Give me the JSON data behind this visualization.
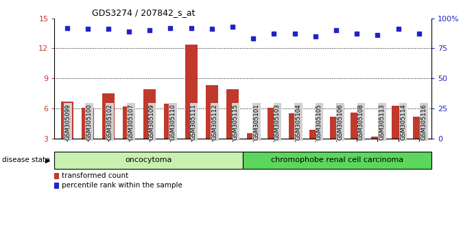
{
  "title": "GDS3274 / 207842_s_at",
  "samples": [
    "GSM305099",
    "GSM305100",
    "GSM305102",
    "GSM305107",
    "GSM305109",
    "GSM305110",
    "GSM305111",
    "GSM305112",
    "GSM305115",
    "GSM305101",
    "GSM305103",
    "GSM305104",
    "GSM305105",
    "GSM305106",
    "GSM305108",
    "GSM305113",
    "GSM305114",
    "GSM305116"
  ],
  "transformed_count": [
    6.7,
    6.1,
    7.5,
    6.2,
    7.9,
    6.5,
    12.4,
    8.3,
    7.9,
    3.5,
    6.1,
    5.5,
    3.9,
    5.2,
    5.6,
    3.2,
    6.3,
    5.2
  ],
  "percentile_rank_pct": [
    92,
    91,
    91,
    89,
    90,
    92,
    92,
    91,
    93,
    83,
    87,
    87,
    85,
    90,
    87,
    86,
    91,
    87
  ],
  "ylim_left": [
    3,
    15
  ],
  "ylim_right": [
    0,
    100
  ],
  "yticks_left": [
    3,
    6,
    9,
    12,
    15
  ],
  "yticks_right": [
    0,
    25,
    50,
    75,
    100
  ],
  "bar_color": "#c0392b",
  "dot_color": "#2222cc",
  "oncocytoma_count": 9,
  "chromophobe_count": 9,
  "oncocytoma_label": "oncocytoma",
  "chromophobe_label": "chromophobe renal cell carcinoma",
  "disease_state_label": "disease state",
  "legend_bar_label": "transformed count",
  "legend_dot_label": "percentile rank within the sample",
  "oncocytoma_color": "#c8f0b0",
  "chromophobe_color": "#5cd65c",
  "tick_label_bg": "#d0d0d0"
}
